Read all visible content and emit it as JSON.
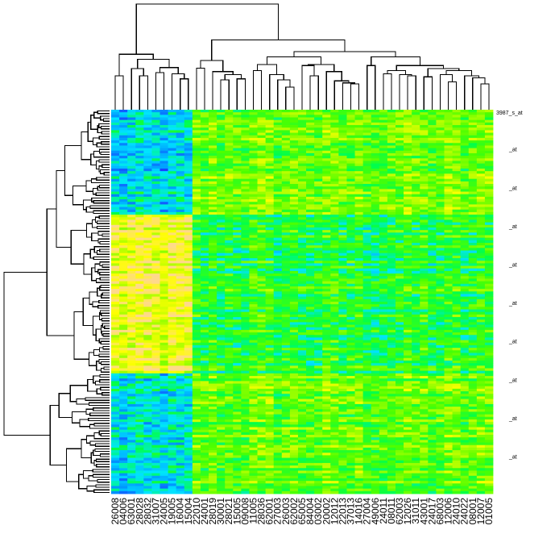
{
  "chart_data": {
    "type": "heatmap",
    "title": "",
    "xlabel": "",
    "ylabel": "",
    "colormap": "topo (low = blue, mid = green, high = yellow)",
    "colormap_stops": [
      "#1a3cff",
      "#0099ff",
      "#00e5ff",
      "#00ff4d",
      "#4dff00",
      "#b3ff00",
      "#ffff00",
      "#ffd98c"
    ],
    "value_range": [
      0,
      1
    ],
    "column_labels": [
      "26008",
      "04006",
      "63001",
      "28028",
      "28032",
      "31007",
      "24005",
      "19005",
      "16004",
      "15004",
      "22010",
      "24001",
      "28019",
      "30001",
      "28021",
      "15005",
      "09008",
      "11005",
      "28036",
      "62001",
      "27003",
      "26003",
      "62002",
      "65005",
      "84004",
      "03002",
      "20002",
      "12012",
      "22013",
      "37013",
      "14016",
      "27004",
      "49006",
      "24011",
      "08011",
      "62003",
      "12026",
      "31011",
      "43001",
      "24017",
      "68003",
      "12006",
      "24010",
      "24022",
      "08001",
      "12007",
      "01005"
    ],
    "column_groups": [
      {
        "columns": "26008-15004",
        "count": 10
      },
      {
        "columns": "22010-01005",
        "count": 37
      }
    ],
    "row_count": 150,
    "row_label_suffix": "_at",
    "row_label_top": "3987_s_at",
    "row_clusters": [
      {
        "rows": 41,
        "mean_group1": 0.25,
        "mean_group2": 0.62
      },
      {
        "rows": 27,
        "mean_group1": 0.86,
        "mean_group2": 0.47
      },
      {
        "rows": 35,
        "mean_group1": 0.83,
        "mean_group2": 0.49
      },
      {
        "rows": 47,
        "mean_group1": 0.28,
        "mean_group2": 0.6
      }
    ],
    "column_dendrogram": [
      1.0,
      [
        0.51,
        [
          0.3,
          0,
          1
        ],
        [
          0.46,
          [
            0.37,
            2,
            [
              0.3,
              3,
              4
            ]
          ],
          [
            0.38,
            [
              0.33,
              5,
              6
            ],
            [
              0.32,
              7,
              [
                0.27,
                8,
                9
              ]
            ]
          ]
        ]
      ],
      [
        0.65,
        [
          0.45,
          [
            0.375,
            10,
            11
          ],
          [
            0.34,
            12,
            [
              0.31,
              [
                0.26,
                13,
                14
              ],
              [
                0.27,
                15,
                16
              ]
            ]
          ]
        ],
        [
          0.535,
          [
            0.485,
            [
              0.41,
              [
                0.35,
                17,
                18
              ],
              [
                0.31,
                19,
                [
                  0.26,
                  20,
                  [
                    0.19,
                    21,
                    22
                  ]
                ]
              ]
            ],
            [
              0.41,
              [
                0.4,
                23,
                [
                  0.3,
                  24,
                  25
                ]
              ],
              [
                0.34,
                26,
                [
                  0.25,
                  27,
                  [
                    0.23,
                    28,
                    [
                      0.22,
                      29,
                      30
                    ]
                  ]
                ]
              ]
            ]
          ],
          [
            0.485,
            [
              0.4,
              31,
              32
            ],
            [
              0.4,
              [
                0.35,
                [
                  0.32,
                  33,
                  34
                ],
                [
                  0.31,
                  35,
                  [
                    0.3,
                    36,
                    37
                  ]
                ]
              ],
              [
                0.37,
                [
                  0.29,
                  38,
                  39
                ],
                [
                  0.35,
                  [
                    0.31,
                    40,
                    [
                      0.24,
                      41,
                      42
                    ]
                  ],
                  [
                    0.3,
                    43,
                    [
                      0.28,
                      44,
                      [
                        0.22,
                        45,
                        46
                      ]
                    ]
                  ]
                ]
              ]
            ]
          ]
        ]
      ]
    ],
    "row_dendrogram": [
      1.0,
      [
        0.59,
        [
          0.5,
          {
            "block": 0,
            "h": 0.42
          },
          {
            "block": 1,
            "h": 0.36
          }
        ],
        {
          "block": 2,
          "h": 0.33
        }
      ],
      {
        "block": 3,
        "h": 0.56
      }
    ]
  }
}
